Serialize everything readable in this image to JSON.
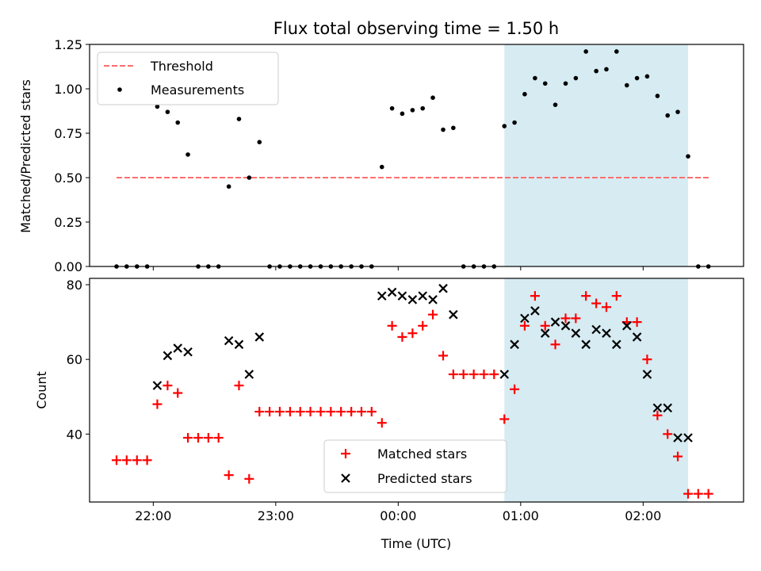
{
  "chart_data": {
    "title": "Flux total observing time = 1.50 h",
    "xlabel": "Time (UTC)",
    "x_unit": "hours since 00:00 UTC",
    "x_ticks": [
      {
        "x": -2.0,
        "label": "22:00"
      },
      {
        "x": -1.0,
        "label": "23:00"
      },
      {
        "x": 0.0,
        "label": "00:00"
      },
      {
        "x": 1.0,
        "label": "01:00"
      },
      {
        "x": 2.0,
        "label": "02:00"
      }
    ],
    "xlim": [
      -2.52,
      2.82
    ],
    "shaded_interval": [
      0.867,
      2.367
    ],
    "shade_color": "#add8e6",
    "panels": [
      {
        "type": "scatter",
        "ylabel": "Matched/Predicted stars",
        "ylim": [
          0.0,
          1.25
        ],
        "y_ticks": [
          "0.00",
          "0.25",
          "0.50",
          "0.75",
          "1.00",
          "1.25"
        ],
        "threshold": {
          "label": "Threshold",
          "y": 0.5,
          "x_range": [
            -2.3,
            2.55
          ],
          "color": "#ff6e6e"
        },
        "series": [
          {
            "name": "Measurements",
            "marker": "dot",
            "color": "#000000",
            "points": [
              [
                -2.3,
                0.0
              ],
              [
                -2.217,
                0.0
              ],
              [
                -2.133,
                0.0
              ],
              [
                -2.05,
                0.0
              ],
              [
                -1.967,
                0.9
              ],
              [
                -1.883,
                0.87
              ],
              [
                -1.8,
                0.81
              ],
              [
                -1.717,
                0.63
              ],
              [
                -1.633,
                0.0
              ],
              [
                -1.55,
                0.0
              ],
              [
                -1.467,
                0.0
              ],
              [
                -1.383,
                0.45
              ],
              [
                -1.3,
                0.83
              ],
              [
                -1.217,
                0.5
              ],
              [
                -1.133,
                0.7
              ],
              [
                -1.05,
                0.0
              ],
              [
                -0.967,
                0.0
              ],
              [
                -0.883,
                0.0
              ],
              [
                -0.8,
                0.0
              ],
              [
                -0.717,
                0.0
              ],
              [
                -0.633,
                0.0
              ],
              [
                -0.55,
                0.0
              ],
              [
                -0.467,
                0.0
              ],
              [
                -0.383,
                0.0
              ],
              [
                -0.3,
                0.0
              ],
              [
                -0.217,
                0.0
              ],
              [
                -0.133,
                0.56
              ],
              [
                -0.05,
                0.89
              ],
              [
                0.033,
                0.86
              ],
              [
                0.117,
                0.88
              ],
              [
                0.2,
                0.89
              ],
              [
                0.283,
                0.95
              ],
              [
                0.367,
                0.77
              ],
              [
                0.45,
                0.78
              ],
              [
                0.533,
                0.0
              ],
              [
                0.617,
                0.0
              ],
              [
                0.7,
                0.0
              ],
              [
                0.783,
                0.0
              ],
              [
                0.867,
                0.79
              ],
              [
                0.95,
                0.81
              ],
              [
                1.033,
                0.97
              ],
              [
                1.117,
                1.06
              ],
              [
                1.2,
                1.03
              ],
              [
                1.283,
                0.91
              ],
              [
                1.367,
                1.03
              ],
              [
                1.45,
                1.06
              ],
              [
                1.533,
                1.21
              ],
              [
                1.617,
                1.1
              ],
              [
                1.7,
                1.11
              ],
              [
                1.783,
                1.21
              ],
              [
                1.867,
                1.02
              ],
              [
                1.95,
                1.06
              ],
              [
                2.033,
                1.07
              ],
              [
                2.117,
                0.96
              ],
              [
                2.2,
                0.85
              ],
              [
                2.283,
                0.87
              ],
              [
                2.367,
                0.62
              ],
              [
                2.45,
                0.0
              ],
              [
                2.533,
                0.0
              ]
            ]
          }
        ],
        "legend": {
          "placement": "upper left",
          "entries": [
            "Threshold",
            "Measurements"
          ]
        }
      },
      {
        "type": "scatter",
        "ylabel": "Count",
        "ylim": [
          21.8,
          81.7
        ],
        "y_ticks": [
          "40",
          "60",
          "80"
        ],
        "series": [
          {
            "name": "Matched stars",
            "marker": "+",
            "color": "#ff0000",
            "points": [
              [
                -2.3,
                33
              ],
              [
                -2.217,
                33
              ],
              [
                -2.133,
                33
              ],
              [
                -2.05,
                33
              ],
              [
                -1.967,
                48
              ],
              [
                -1.883,
                53
              ],
              [
                -1.8,
                51
              ],
              [
                -1.717,
                39
              ],
              [
                -1.633,
                39
              ],
              [
                -1.55,
                39
              ],
              [
                -1.467,
                39
              ],
              [
                -1.383,
                29
              ],
              [
                -1.3,
                53
              ],
              [
                -1.217,
                28
              ],
              [
                -1.133,
                46
              ],
              [
                -1.05,
                46
              ],
              [
                -0.967,
                46
              ],
              [
                -0.883,
                46
              ],
              [
                -0.8,
                46
              ],
              [
                -0.717,
                46
              ],
              [
                -0.633,
                46
              ],
              [
                -0.55,
                46
              ],
              [
                -0.467,
                46
              ],
              [
                -0.383,
                46
              ],
              [
                -0.3,
                46
              ],
              [
                -0.217,
                46
              ],
              [
                -0.133,
                43
              ],
              [
                -0.05,
                69
              ],
              [
                0.033,
                66
              ],
              [
                0.117,
                67
              ],
              [
                0.2,
                69
              ],
              [
                0.283,
                72
              ],
              [
                0.367,
                61
              ],
              [
                0.45,
                56
              ],
              [
                0.533,
                56
              ],
              [
                0.617,
                56
              ],
              [
                0.7,
                56
              ],
              [
                0.783,
                56
              ],
              [
                0.867,
                44
              ],
              [
                0.95,
                52
              ],
              [
                1.033,
                69
              ],
              [
                1.117,
                77
              ],
              [
                1.2,
                69
              ],
              [
                1.283,
                64
              ],
              [
                1.367,
                71
              ],
              [
                1.45,
                71
              ],
              [
                1.533,
                77
              ],
              [
                1.617,
                75
              ],
              [
                1.7,
                74
              ],
              [
                1.783,
                77
              ],
              [
                1.867,
                70
              ],
              [
                1.95,
                70
              ],
              [
                2.033,
                60
              ],
              [
                2.117,
                45
              ],
              [
                2.2,
                40
              ],
              [
                2.283,
                34
              ],
              [
                2.367,
                24
              ],
              [
                2.45,
                24
              ],
              [
                2.533,
                24
              ]
            ]
          },
          {
            "name": "Predicted stars",
            "marker": "x",
            "color": "#000000",
            "points": [
              [
                -1.967,
                53
              ],
              [
                -1.883,
                61
              ],
              [
                -1.8,
                63
              ],
              [
                -1.717,
                62
              ],
              [
                -1.383,
                65
              ],
              [
                -1.3,
                64
              ],
              [
                -1.217,
                56
              ],
              [
                -1.133,
                66
              ],
              [
                -0.133,
                77
              ],
              [
                -0.05,
                78
              ],
              [
                0.033,
                77
              ],
              [
                0.117,
                76
              ],
              [
                0.2,
                77
              ],
              [
                0.283,
                76
              ],
              [
                0.367,
                79
              ],
              [
                0.45,
                72
              ],
              [
                0.867,
                56
              ],
              [
                0.95,
                64
              ],
              [
                1.033,
                71
              ],
              [
                1.117,
                73
              ],
              [
                1.2,
                67
              ],
              [
                1.283,
                70
              ],
              [
                1.367,
                69
              ],
              [
                1.45,
                67
              ],
              [
                1.533,
                64
              ],
              [
                1.617,
                68
              ],
              [
                1.7,
                67
              ],
              [
                1.783,
                64
              ],
              [
                1.867,
                69
              ],
              [
                1.95,
                66
              ],
              [
                2.033,
                56
              ],
              [
                2.117,
                47
              ],
              [
                2.2,
                47
              ],
              [
                2.283,
                39
              ],
              [
                2.367,
                39
              ]
            ]
          }
        ],
        "legend": {
          "placement": "lower center",
          "entries": [
            "Matched stars",
            "Predicted stars"
          ]
        }
      }
    ]
  }
}
